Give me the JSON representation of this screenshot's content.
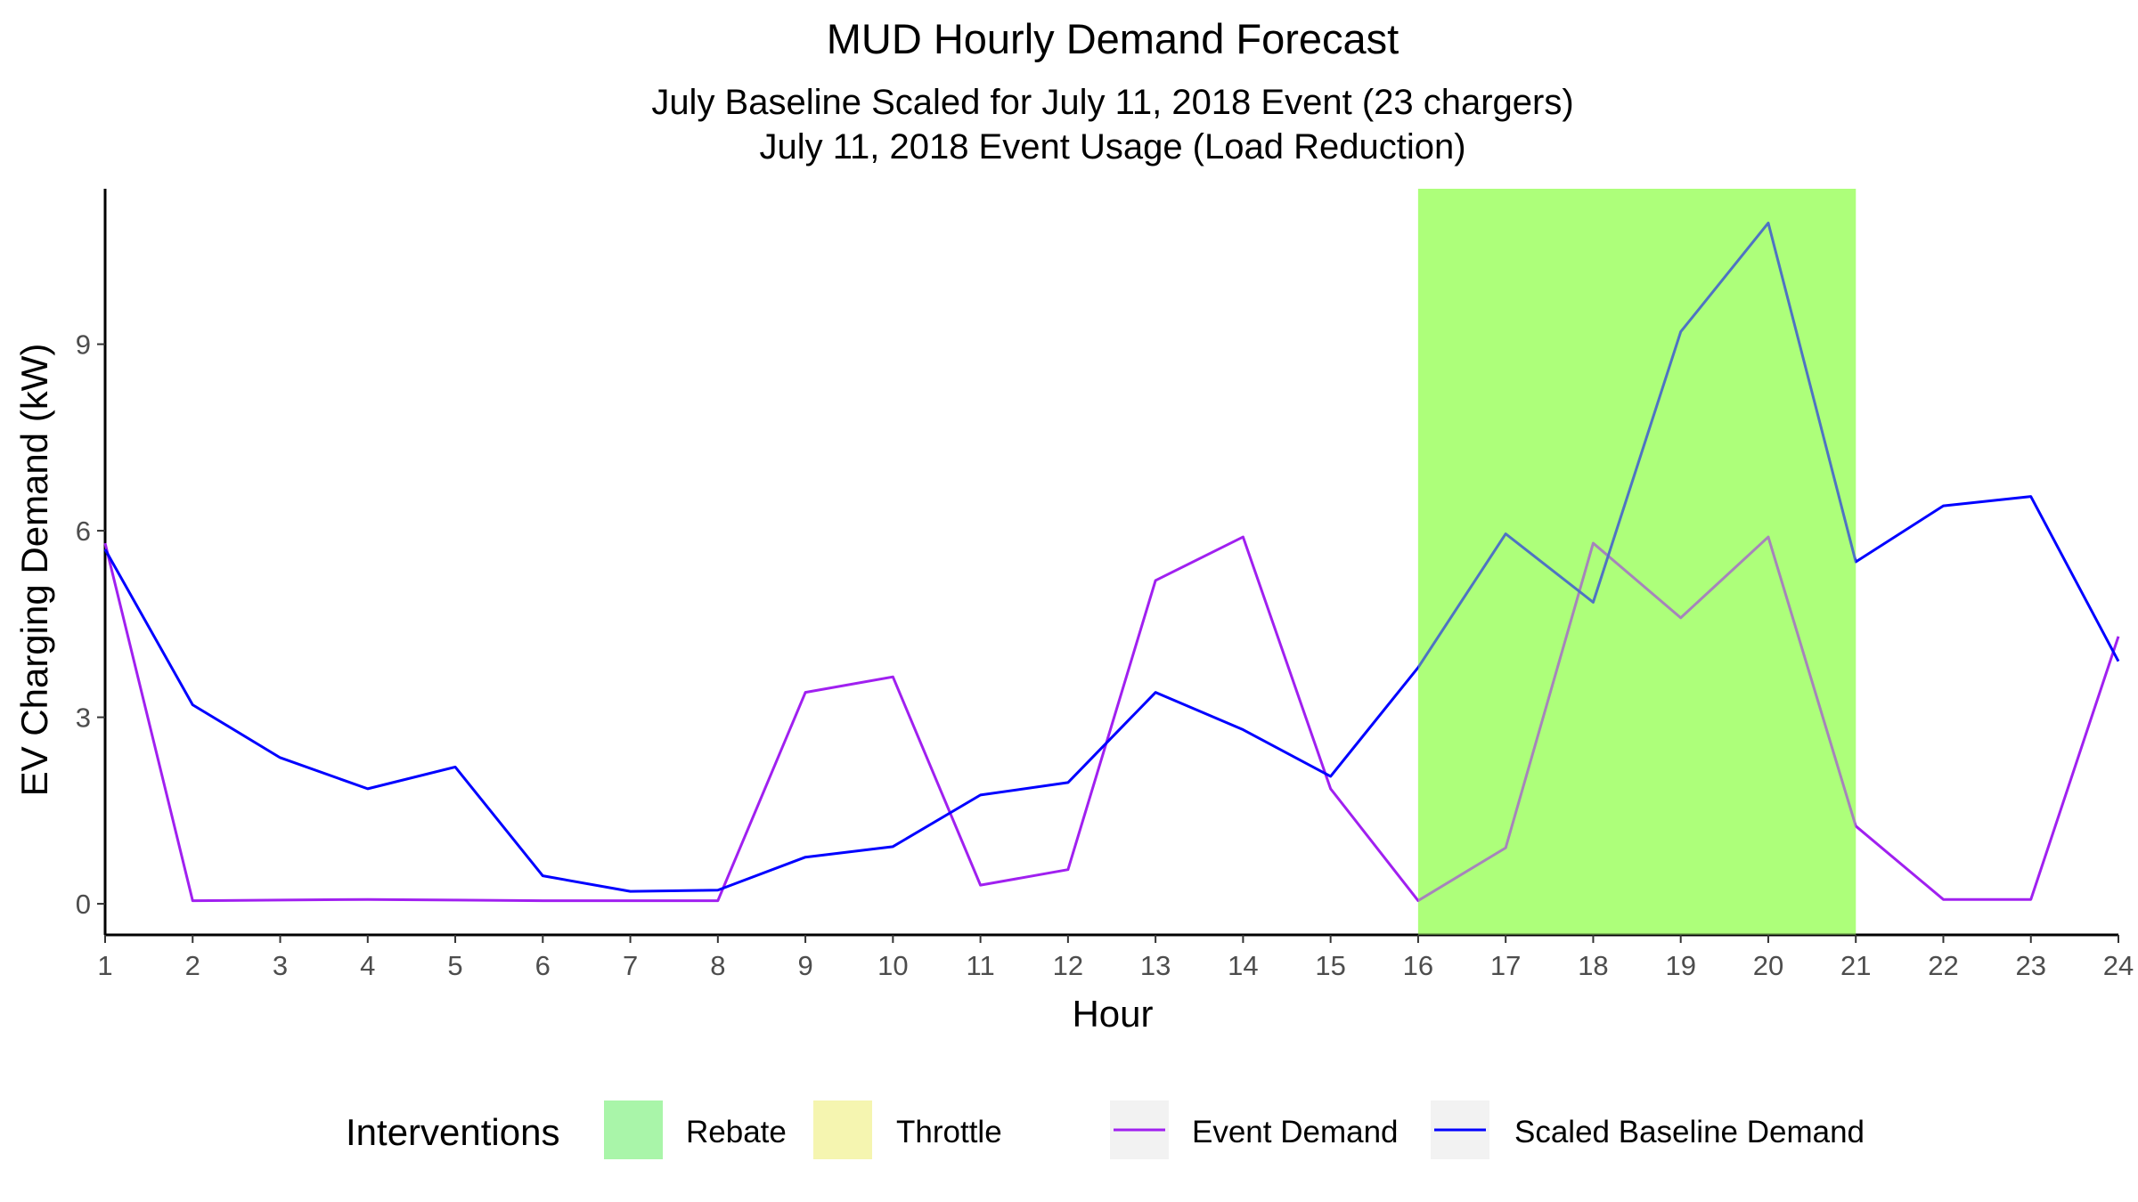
{
  "chart_data": {
    "type": "line",
    "title": "MUD Hourly Demand Forecast",
    "subtitle_lines": [
      "July Baseline Scaled for July 11, 2018 Event (23 chargers)",
      "July 11, 2018 Event Usage (Load Reduction)"
    ],
    "xlabel": "Hour",
    "ylabel": "EV Charging Demand (kW)",
    "xlim": [
      1,
      24
    ],
    "ylim": [
      -0.5,
      11.5
    ],
    "x": [
      1,
      2,
      3,
      4,
      5,
      6,
      7,
      8,
      9,
      10,
      11,
      12,
      13,
      14,
      15,
      16,
      17,
      18,
      19,
      20,
      21,
      22,
      23,
      24
    ],
    "x_ticks": [
      "1",
      "2",
      "3",
      "4",
      "5",
      "6",
      "7",
      "8",
      "9",
      "10",
      "11",
      "12",
      "13",
      "14",
      "15",
      "16",
      "17",
      "18",
      "19",
      "20",
      "21",
      "22",
      "23",
      "24"
    ],
    "y_ticks": [
      0,
      3,
      6,
      9
    ],
    "grid": false,
    "series": [
      {
        "name": "Event Demand",
        "color": "#a020f0",
        "values": [
          5.8,
          0.05,
          0.06,
          0.07,
          0.06,
          0.05,
          0.05,
          0.05,
          3.4,
          3.65,
          0.3,
          0.55,
          5.2,
          5.9,
          1.85,
          0.05,
          0.9,
          5.8,
          4.6,
          5.9,
          1.25,
          0.07,
          0.07,
          4.3
        ]
      },
      {
        "name": "Scaled Baseline Demand",
        "color": "#0000ff",
        "values": [
          5.7,
          3.2,
          2.35,
          1.85,
          2.2,
          0.45,
          0.2,
          0.22,
          0.75,
          0.92,
          1.75,
          1.95,
          3.4,
          2.8,
          2.05,
          3.8,
          5.95,
          4.85,
          9.2,
          10.95,
          5.5,
          6.4,
          6.55,
          3.9
        ]
      }
    ],
    "interventions": {
      "title": "Interventions",
      "items": [
        {
          "name": "Rebate",
          "color": "#adff7a",
          "legend_color": "#a9f5a9",
          "start_hour": 16,
          "end_hour": 21
        },
        {
          "name": "Throttle",
          "color": "#f5f5b0",
          "legend_color": "#f5f5b0"
        }
      ]
    },
    "legend_position": "bottom"
  }
}
